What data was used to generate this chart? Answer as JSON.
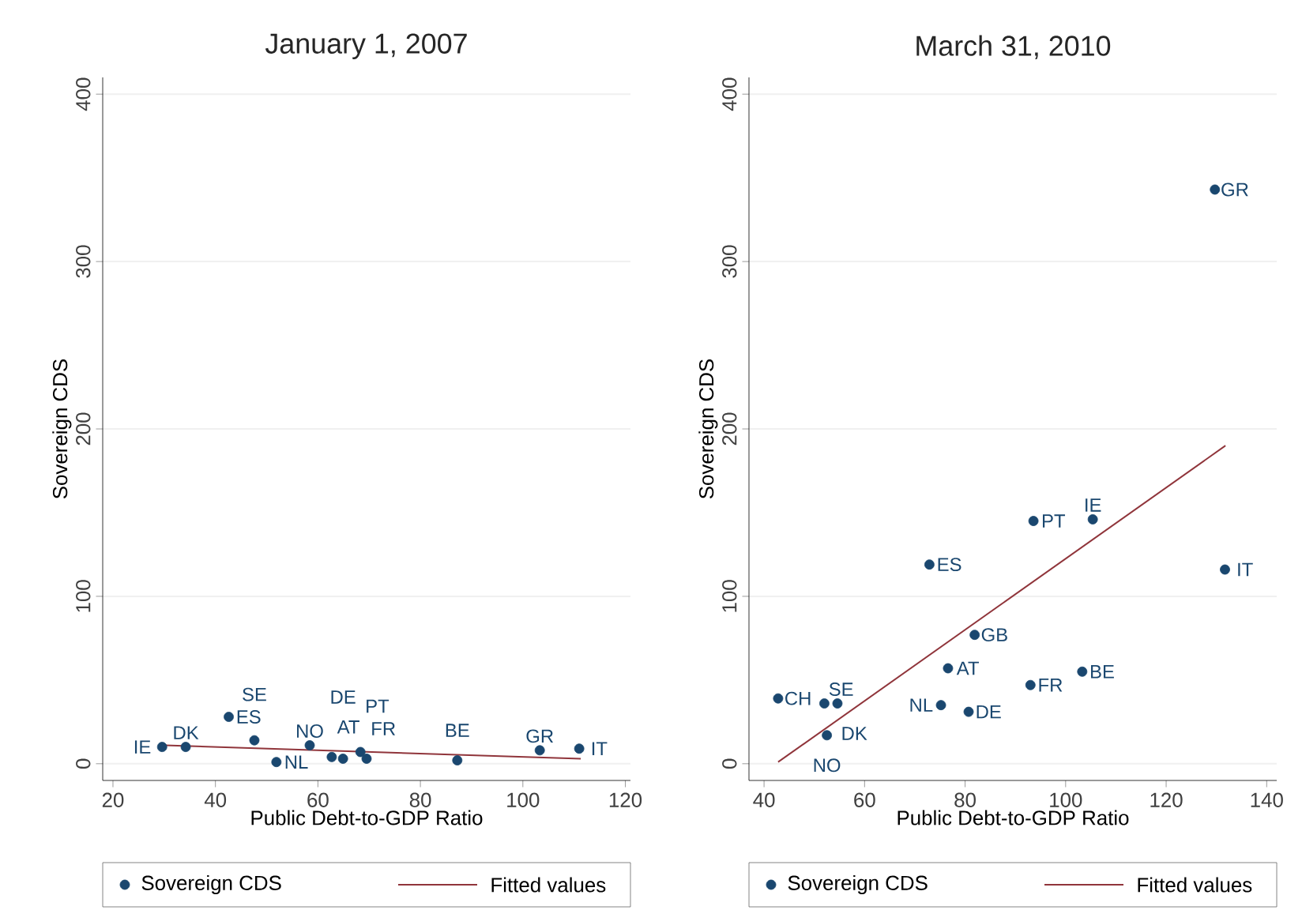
{
  "chart_data": [
    {
      "type": "scatter",
      "title": "January 1, 2007",
      "xlabel": "Public Debt-to-GDP Ratio",
      "ylabel": "Sovereign CDS",
      "series": [
        {
          "name": "Sovereign CDS",
          "color": "#1a476f",
          "marker": "circle",
          "x": [
            29.6,
            34.2,
            42.6,
            47.6,
            51.9,
            58.4,
            62.7,
            64.9,
            68.3,
            69.5,
            87.2,
            103.3,
            111
          ],
          "values": [
            10,
            10,
            28,
            14,
            1,
            11,
            4,
            3,
            7,
            3,
            2,
            8,
            9
          ]
        },
        {
          "name": "Fitted values",
          "color": "#90353b",
          "type": "line",
          "x": [
            30.2,
            111.3
          ],
          "values": [
            11,
            3
          ]
        }
      ],
      "annotations": [
        {
          "text": "IE",
          "x": 29.6,
          "y": 10
        },
        {
          "text": "DK",
          "x": 34.2,
          "y": 10
        },
        {
          "text": "ES",
          "x": 42.6,
          "y": 28
        },
        {
          "text": "SE",
          "x": 47.6,
          "y": 14
        },
        {
          "text": "NL",
          "x": 51.9,
          "y": 1
        },
        {
          "text": "NO",
          "x": 58.4,
          "y": 11
        },
        {
          "text": "AT",
          "x": 62.7,
          "y": 4
        },
        {
          "text": "DE",
          "x": 64.9,
          "y": 3
        },
        {
          "text": "PT",
          "x": 68.3,
          "y": 7
        },
        {
          "text": "FR",
          "x": 69.5,
          "y": 3
        },
        {
          "text": "BE",
          "x": 87.2,
          "y": 2
        },
        {
          "text": "GR",
          "x": 103.3,
          "y": 8
        },
        {
          "text": "IT",
          "x": 111,
          "y": 9
        }
      ],
      "xlim": [
        18,
        121
      ],
      "ylim": [
        -10,
        410
      ],
      "xticks": [
        20,
        40,
        60,
        80,
        100,
        120
      ],
      "yticks": [
        0,
        100,
        200,
        300,
        400
      ],
      "grid": "y",
      "legend": "bottom"
    },
    {
      "type": "scatter",
      "title": "March 31, 2010",
      "xlabel": "Public Debt-to-GDP Ratio",
      "ylabel": "Sovereign CDS",
      "series": [
        {
          "name": "Sovereign CDS",
          "color": "#1a476f",
          "marker": "circle",
          "x": [
            129.7,
            93.6,
            105.4,
            72.9,
            131.7,
            81.9,
            76.6,
            103.3,
            93,
            75.2,
            80.7,
            42.8,
            52,
            54.6,
            52.5
          ],
          "values": [
            343,
            145,
            146,
            119,
            116,
            77,
            57,
            55,
            47,
            35,
            31,
            39,
            36,
            36,
            17
          ]
        },
        {
          "name": "Fitted values",
          "color": "#90353b",
          "type": "line",
          "x": [
            42.8,
            131.8
          ],
          "values": [
            1,
            190
          ]
        }
      ],
      "annotations": [
        {
          "text": "GR",
          "x": 129.7,
          "y": 343
        },
        {
          "text": "PT",
          "x": 93.6,
          "y": 145
        },
        {
          "text": "IE",
          "x": 105.4,
          "y": 146
        },
        {
          "text": "ES",
          "x": 72.9,
          "y": 119
        },
        {
          "text": "IT",
          "x": 131.7,
          "y": 116
        },
        {
          "text": "GB",
          "x": 81.9,
          "y": 77
        },
        {
          "text": "AT",
          "x": 76.6,
          "y": 57
        },
        {
          "text": "BE",
          "x": 103.3,
          "y": 55
        },
        {
          "text": "FR",
          "x": 93,
          "y": 47
        },
        {
          "text": "NL",
          "x": 75.2,
          "y": 35
        },
        {
          "text": "DE",
          "x": 80.7,
          "y": 31
        },
        {
          "text": "CH",
          "x": 42.8,
          "y": 39
        },
        {
          "text": "SE",
          "x": 52,
          "y": 36
        },
        {
          "text": "DK",
          "x": 54.6,
          "y": 36
        },
        {
          "text": "NO",
          "x": 52.5,
          "y": 17
        }
      ],
      "xlim": [
        37,
        142
      ],
      "ylim": [
        -10,
        410
      ],
      "xticks": [
        40,
        60,
        80,
        100,
        120,
        140
      ],
      "yticks": [
        0,
        100,
        200,
        300,
        400
      ],
      "grid": "y",
      "legend": "bottom"
    }
  ]
}
